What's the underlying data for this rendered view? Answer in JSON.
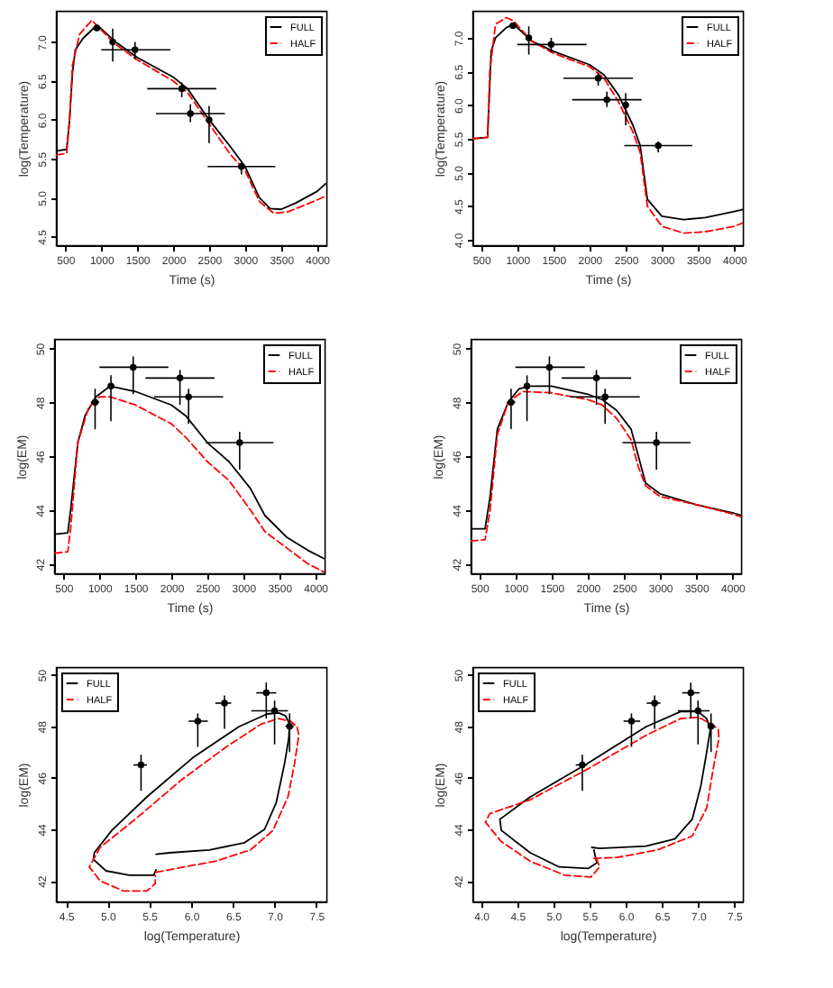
{
  "chart_data": [
    {
      "type": "line",
      "xlabel": "Time (s)",
      "ylabel": "log(Temperature)",
      "xlim": [
        370,
        4130
      ],
      "ylim": [
        4.39,
        7.4
      ],
      "xticks": [
        500,
        1000,
        1500,
        2000,
        2500,
        3000,
        3500,
        4000
      ],
      "yticks": [
        4.5,
        {
          "value": 5,
          "label": "5.0"
        },
        5.5,
        {
          "value": 6,
          "label": "6.0"
        },
        6.5,
        {
          "value": 7,
          "label": "7.0"
        }
      ],
      "grid": false,
      "legend": "top right",
      "series": [
        {
          "name": "FULL",
          "color": "#000000",
          "line_style": "solid",
          "x": [
            380,
            520,
            560,
            600,
            640,
            750,
            900,
            1000,
            1200,
            1500,
            2000,
            2200,
            2500,
            2800,
            3000,
            3200,
            3350,
            3500,
            3700,
            4000,
            4120
          ],
          "values": [
            5.6,
            5.62,
            6.0,
            6.6,
            6.9,
            7.05,
            7.18,
            7.17,
            7.0,
            6.8,
            6.55,
            6.4,
            6.0,
            5.65,
            5.4,
            5.0,
            4.86,
            4.85,
            4.93,
            5.08,
            5.18
          ]
        },
        {
          "name": "HALF",
          "color": "#ff0000",
          "line_style": "dashed",
          "x": [
            380,
            520,
            560,
            600,
            700,
            870,
            950,
            1200,
            1500,
            2000,
            2200,
            2500,
            2800,
            3000,
            3200,
            3400,
            3600,
            4000,
            4120
          ],
          "values": [
            5.55,
            5.57,
            6.0,
            6.7,
            7.1,
            7.28,
            7.2,
            6.97,
            6.77,
            6.5,
            6.35,
            5.95,
            5.55,
            5.35,
            4.95,
            4.8,
            4.82,
            4.97,
            5.02
          ]
        },
        {
          "type": "scatter",
          "color": "#000000",
          "marker": "circle",
          "x": [
            940,
            1160,
            1470,
            2120,
            2240,
            2500,
            2950
          ],
          "values": [
            7.18,
            7.0,
            6.9,
            6.4,
            6.08,
            6.0,
            5.4
          ],
          "errors": [
            [
              7.14,
              7.22
            ],
            [
              6.75,
              7.17
            ],
            [
              6.78,
              7.0
            ],
            [
              6.29,
              6.48
            ],
            [
              5.97,
              6.2
            ],
            [
              5.7,
              6.18
            ],
            [
              5.3,
              5.46
            ]
          ],
          "xerrors": [
            [
              880,
              1000
            ],
            [
              1120,
              1190
            ],
            [
              1000,
              1960
            ],
            [
              1640,
              2600
            ],
            [
              1760,
              2720
            ],
            [
              2470,
              2530
            ],
            [
              2480,
              3420
            ]
          ]
        }
      ]
    },
    {
      "type": "line",
      "xlabel": "Time (s)",
      "ylabel": "log(Temperature)",
      "xlim": [
        380,
        4120
      ],
      "ylim": [
        3.92,
        7.4
      ],
      "xticks": [
        500,
        1000,
        1500,
        2000,
        2500,
        3000,
        3500,
        4000
      ],
      "yticks": [
        {
          "value": 4,
          "label": "4.0"
        },
        4.5,
        {
          "value": 5,
          "label": "5.0"
        },
        5.5,
        {
          "value": 6,
          "label": "6.0"
        },
        6.5,
        {
          "value": 7,
          "label": "7.0"
        }
      ],
      "grid": false,
      "legend": "top right",
      "series": [
        {
          "name": "FULL",
          "color": "#000000",
          "line_style": "solid",
          "x": [
            380,
            590,
            640,
            700,
            850,
            950,
            1200,
            1500,
            2000,
            2200,
            2400,
            2600,
            2700,
            2750,
            2800,
            3000,
            3300,
            3600,
            4000,
            4120
          ],
          "values": [
            5.5,
            5.52,
            6.8,
            7.0,
            7.15,
            7.2,
            6.95,
            6.8,
            6.6,
            6.45,
            6.15,
            5.7,
            5.4,
            5.0,
            4.6,
            4.35,
            4.3,
            4.33,
            4.42,
            4.45
          ]
        },
        {
          "name": "HALF",
          "color": "#ff0000",
          "line_style": "dashed",
          "x": [
            380,
            590,
            620,
            700,
            850,
            950,
            1200,
            1500,
            2000,
            2200,
            2400,
            2600,
            2700,
            2750,
            2800,
            3000,
            3300,
            3600,
            4000,
            4120
          ],
          "values": [
            5.5,
            5.52,
            6.5,
            7.2,
            7.3,
            7.25,
            6.95,
            6.77,
            6.57,
            6.4,
            6.05,
            5.6,
            5.3,
            4.9,
            4.5,
            4.2,
            4.1,
            4.12,
            4.2,
            4.25
          ]
        },
        {
          "type": "scatter",
          "color": "#000000",
          "marker": "circle",
          "x": [
            940,
            1160,
            1470,
            2120,
            2240,
            2500,
            2950
          ],
          "values": [
            7.18,
            7.0,
            6.9,
            6.4,
            6.08,
            6.0,
            5.4
          ],
          "errors": [
            [
              7.14,
              7.22
            ],
            [
              6.75,
              7.17
            ],
            [
              6.78,
              7.0
            ],
            [
              6.29,
              6.48
            ],
            [
              5.97,
              6.2
            ],
            [
              5.7,
              6.18
            ],
            [
              5.3,
              5.46
            ]
          ],
          "xerrors": [
            [
              880,
              1000
            ],
            [
              1120,
              1190
            ],
            [
              1000,
              1960
            ],
            [
              1640,
              2600
            ],
            [
              1760,
              2720
            ],
            [
              2470,
              2530
            ],
            [
              2480,
              3420
            ]
          ]
        }
      ]
    },
    {
      "type": "line",
      "xlabel": "Time (s)",
      "ylabel": "log(EM)",
      "xlim": [
        370,
        4130
      ],
      "ylim": [
        41.65,
        50.35
      ],
      "xticks": [
        500,
        1000,
        1500,
        2000,
        2500,
        3000,
        3500,
        4000
      ],
      "yticks": [
        42,
        44,
        46,
        48,
        50
      ],
      "grid": false,
      "legend": "top right",
      "series": [
        {
          "name": "FULL",
          "color": "#000000",
          "line_style": "solid",
          "x": [
            380,
            560,
            600,
            700,
            800,
            950,
            1150,
            1500,
            2000,
            2200,
            2500,
            2800,
            3100,
            3300,
            3600,
            3900,
            4120
          ],
          "values": [
            43.1,
            43.15,
            44.0,
            46.5,
            47.5,
            48.2,
            48.6,
            48.4,
            47.9,
            47.5,
            46.5,
            45.8,
            44.8,
            43.8,
            43.0,
            42.5,
            42.2
          ]
        },
        {
          "name": "HALF",
          "color": "#ff0000",
          "line_style": "dashed",
          "x": [
            380,
            560,
            600,
            700,
            850,
            1000,
            1150,
            1500,
            2000,
            2200,
            2500,
            2800,
            3100,
            3300,
            3600,
            3900,
            4120
          ],
          "values": [
            42.4,
            42.45,
            43.3,
            46.5,
            47.8,
            48.2,
            48.2,
            47.9,
            47.2,
            46.7,
            45.8,
            45.1,
            44.0,
            43.2,
            42.6,
            42.0,
            41.7
          ]
        },
        {
          "type": "scatter",
          "color": "#000000",
          "marker": "circle",
          "x": [
            940,
            1160,
            1470,
            2120,
            2240,
            2950
          ],
          "values": [
            48.0,
            48.6,
            49.3,
            48.9,
            48.2,
            46.5
          ],
          "errors": [
            [
              47.0,
              48.5
            ],
            [
              47.3,
              49.0
            ],
            [
              48.3,
              49.7
            ],
            [
              47.9,
              49.2
            ],
            [
              47.2,
              48.5
            ],
            [
              45.5,
              46.9
            ]
          ],
          "xerrors": [
            [
              880,
              1000
            ],
            [
              1120,
              1190
            ],
            [
              1000,
              1960
            ],
            [
              1640,
              2600
            ],
            [
              1760,
              2720
            ],
            [
              2480,
              3420
            ]
          ]
        }
      ]
    },
    {
      "type": "line",
      "xlabel": "Time (s)",
      "ylabel": "log(EM)",
      "xlim": [
        380,
        4120
      ],
      "ylim": [
        41.65,
        50.35
      ],
      "xticks": [
        500,
        1000,
        1500,
        2000,
        2500,
        3000,
        3500,
        4000
      ],
      "yticks": [
        42,
        44,
        46,
        48,
        50
      ],
      "grid": false,
      "legend": "top right",
      "series": [
        {
          "name": "FULL",
          "color": "#000000",
          "line_style": "solid",
          "x": [
            380,
            580,
            650,
            750,
            900,
            1050,
            1200,
            1500,
            2000,
            2200,
            2400,
            2600,
            2700,
            2800,
            3000,
            3500,
            4000,
            4120
          ],
          "values": [
            43.3,
            43.3,
            44.5,
            47.0,
            48.0,
            48.5,
            48.6,
            48.6,
            48.3,
            48.1,
            47.7,
            47.0,
            46.0,
            45.0,
            44.6,
            44.2,
            43.9,
            43.8
          ]
        },
        {
          "name": "HALF",
          "color": "#ff0000",
          "line_style": "dashed",
          "x": [
            380,
            580,
            650,
            750,
            900,
            1100,
            1500,
            2000,
            2200,
            2400,
            2600,
            2700,
            2800,
            3000,
            3500,
            4000,
            4120
          ],
          "values": [
            42.85,
            42.9,
            44.0,
            46.8,
            48.0,
            48.4,
            48.35,
            48.1,
            47.9,
            47.4,
            46.6,
            45.6,
            44.9,
            44.5,
            44.2,
            43.85,
            43.75
          ]
        },
        {
          "type": "scatter",
          "color": "#000000",
          "marker": "circle",
          "x": [
            940,
            1160,
            1470,
            2120,
            2240,
            2950
          ],
          "values": [
            48.0,
            48.6,
            49.3,
            48.9,
            48.2,
            46.5
          ],
          "errors": [
            [
              47.0,
              48.5
            ],
            [
              47.3,
              49.0
            ],
            [
              48.3,
              49.7
            ],
            [
              47.9,
              49.2
            ],
            [
              47.2,
              48.5
            ],
            [
              45.5,
              46.9
            ]
          ],
          "xerrors": [
            [
              880,
              1000
            ],
            [
              1120,
              1190
            ],
            [
              1000,
              1960
            ],
            [
              1640,
              2600
            ],
            [
              1760,
              2720
            ],
            [
              2480,
              3420
            ]
          ]
        }
      ]
    },
    {
      "type": "line",
      "xlabel": "log(Temperature)",
      "ylabel": "log(EM)",
      "xlim": [
        4.38,
        7.62
      ],
      "ylim": [
        41.2,
        50.3
      ],
      "xticks": [
        4.5,
        {
          "value": 5,
          "label": "5.0"
        },
        5.5,
        {
          "value": 6,
          "label": "6.0"
        },
        6.5,
        {
          "value": 7,
          "label": "7.0"
        },
        7.5
      ],
      "yticks": [
        42,
        44,
        46,
        48,
        50
      ],
      "grid": false,
      "legend": "top left",
      "series": [
        {
          "name": "FULL",
          "color": "#000000",
          "line_style": "solid",
          "x": [
            5.58,
            5.74,
            6.22,
            6.64,
            6.88,
            7.02,
            7.12,
            7.17,
            7.18,
            7.13,
            7.05,
            6.91,
            6.57,
            6.02,
            5.47,
            5.05,
            4.84,
            4.83,
            4.98,
            5.26,
            5.55,
            5.58
          ],
          "values": [
            43.03,
            43.09,
            43.2,
            43.48,
            44.0,
            45.04,
            46.57,
            47.54,
            48.09,
            48.41,
            48.52,
            48.48,
            47.98,
            46.78,
            45.26,
            43.96,
            43.09,
            42.83,
            42.39,
            42.22,
            42.22,
            42.43
          ]
        },
        {
          "name": "HALF",
          "color": "#ff0000",
          "line_style": "dashed",
          "x": [
            5.58,
            5.81,
            6.29,
            6.71,
            6.98,
            7.16,
            7.24,
            7.29,
            7.27,
            7.19,
            7.05,
            6.84,
            6.43,
            5.88,
            5.33,
            4.91,
            4.78,
            4.91,
            5.19,
            5.47,
            5.57,
            5.57
          ],
          "values": [
            42.33,
            42.48,
            42.76,
            43.2,
            43.96,
            45.26,
            46.57,
            47.65,
            47.98,
            48.2,
            48.3,
            48.09,
            47.22,
            45.91,
            44.39,
            43.3,
            42.54,
            42.0,
            41.61,
            41.61,
            41.89,
            42.22
          ]
        },
        {
          "type": "scatter",
          "color": "#000000",
          "marker": "circle",
          "x": [
            7.18,
            7.0,
            6.9,
            6.4,
            6.08,
            5.4
          ],
          "values": [
            48.0,
            48.6,
            49.3,
            48.9,
            48.2,
            46.5
          ],
          "errors": [
            [
              47.0,
              48.5
            ],
            [
              47.3,
              49.0
            ],
            [
              48.3,
              49.7
            ],
            [
              47.9,
              49.2
            ],
            [
              47.2,
              48.5
            ],
            [
              45.5,
              46.9
            ]
          ],
          "xerrors": [
            [
              7.13,
              7.23
            ],
            [
              6.72,
              7.16
            ],
            [
              6.78,
              7.02
            ],
            [
              6.29,
              6.48
            ],
            [
              5.97,
              6.2
            ],
            [
              5.31,
              5.47
            ]
          ]
        }
      ]
    },
    {
      "type": "line",
      "xlabel": "log(Temperature)",
      "ylabel": "log(EM)",
      "xlim": [
        3.88,
        7.62
      ],
      "ylim": [
        41.2,
        50.3
      ],
      "xticks": [
        {
          "value": 4,
          "label": "4.0"
        },
        4.5,
        {
          "value": 5,
          "label": "5.0"
        },
        5.5,
        {
          "value": 6,
          "label": "6.0"
        },
        6.5,
        {
          "value": 7,
          "label": "7.0"
        },
        7.5
      ],
      "yticks": [
        42,
        44,
        46,
        48,
        50
      ],
      "grid": false,
      "legend": "top left",
      "series": [
        {
          "name": "FULL",
          "color": "#000000",
          "line_style": "solid",
          "x": [
            5.53,
            5.64,
            6.28,
            6.68,
            6.92,
            7.04,
            7.12,
            7.17,
            7.12,
            7.0,
            6.76,
            6.28,
            5.48,
            4.68,
            4.26,
            4.28,
            4.68,
            5.08,
            5.48,
            5.6,
            5.56
          ],
          "values": [
            43.3,
            43.26,
            43.35,
            43.63,
            44.39,
            45.7,
            47.0,
            47.87,
            48.3,
            48.57,
            48.57,
            47.98,
            46.57,
            45.26,
            44.39,
            43.96,
            43.09,
            42.54,
            42.48,
            42.7,
            43.2
          ]
        },
        {
          "name": "HALF",
          "color": "#ff0000",
          "line_style": "dashed",
          "x": [
            5.56,
            5.88,
            6.44,
            6.92,
            7.12,
            7.21,
            7.29,
            7.28,
            7.19,
            7.0,
            6.76,
            6.28,
            5.48,
            4.68,
            4.12,
            4.06,
            4.28,
            4.68,
            5.16,
            5.52,
            5.64,
            5.6
          ],
          "values": [
            42.87,
            42.91,
            43.2,
            43.74,
            44.83,
            46.35,
            47.54,
            47.87,
            48.09,
            48.35,
            48.3,
            47.65,
            46.35,
            45.15,
            44.61,
            44.28,
            43.52,
            42.76,
            42.22,
            42.15,
            42.54,
            42.83
          ]
        },
        {
          "type": "scatter",
          "color": "#000000",
          "marker": "circle",
          "x": [
            7.18,
            7.0,
            6.9,
            6.4,
            6.08,
            5.4
          ],
          "values": [
            48.0,
            48.6,
            49.3,
            48.9,
            48.2,
            46.5
          ],
          "errors": [
            [
              47.0,
              48.5
            ],
            [
              47.3,
              49.0
            ],
            [
              48.3,
              49.7
            ],
            [
              47.9,
              49.2
            ],
            [
              47.2,
              48.5
            ],
            [
              45.5,
              46.9
            ]
          ],
          "xerrors": [
            [
              7.13,
              7.23
            ],
            [
              6.72,
              7.16
            ],
            [
              6.78,
              7.02
            ],
            [
              6.29,
              6.48
            ],
            [
              5.97,
              6.2
            ],
            [
              5.31,
              5.47
            ]
          ]
        }
      ]
    }
  ]
}
